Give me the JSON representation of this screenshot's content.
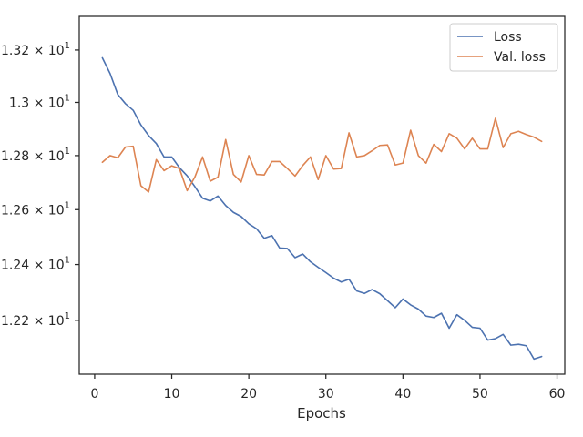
{
  "chart_data": {
    "type": "line",
    "title": "",
    "xlabel": "Epochs",
    "ylabel": "",
    "xlim": [
      -2,
      61
    ],
    "ylim": [
      12.01,
      13.33
    ],
    "y_scale": "log",
    "grid": false,
    "legend_position": "top-right",
    "x_ticks": [
      0,
      10,
      20,
      30,
      40,
      50,
      60
    ],
    "x_tick_labels": [
      "0",
      "10",
      "20",
      "30",
      "40",
      "50",
      "60"
    ],
    "y_ticks": [
      12.2,
      12.4,
      12.6,
      12.8,
      13.0,
      13.2
    ],
    "y_tick_labels": [
      {
        "mantissa": "1.22",
        "exp": "1"
      },
      {
        "mantissa": "1.24",
        "exp": "1"
      },
      {
        "mantissa": "1.26",
        "exp": "1"
      },
      {
        "mantissa": "1.28",
        "exp": "1"
      },
      {
        "mantissa": "1.3",
        "exp": "1"
      },
      {
        "mantissa": "1.32",
        "exp": "1"
      }
    ],
    "x": [
      1,
      2,
      3,
      4,
      5,
      6,
      7,
      8,
      9,
      10,
      11,
      12,
      13,
      14,
      15,
      16,
      17,
      18,
      19,
      20,
      21,
      22,
      23,
      24,
      25,
      26,
      27,
      28,
      29,
      30,
      31,
      32,
      33,
      34,
      35,
      36,
      37,
      38,
      39,
      40,
      41,
      42,
      43,
      44,
      45,
      46,
      47,
      48,
      49,
      50,
      51,
      52,
      53,
      54,
      55,
      56,
      57,
      58
    ],
    "series": [
      {
        "name": "Loss",
        "color": "#4c72b0",
        "values": [
          13.17,
          13.11,
          13.03,
          12.995,
          12.97,
          12.915,
          12.875,
          12.845,
          12.795,
          12.795,
          12.755,
          12.725,
          12.685,
          12.642,
          12.632,
          12.65,
          12.615,
          12.59,
          12.575,
          12.548,
          12.53,
          12.495,
          12.505,
          12.46,
          12.458,
          12.425,
          12.438,
          12.41,
          12.39,
          12.371,
          12.351,
          12.337,
          12.347,
          12.305,
          12.296,
          12.31,
          12.295,
          12.27,
          12.245,
          12.276,
          12.255,
          12.24,
          12.215,
          12.21,
          12.225,
          12.172,
          12.22,
          12.2,
          12.175,
          12.172,
          12.13,
          12.135,
          12.15,
          12.112,
          12.115,
          12.11,
          12.063,
          12.072
        ]
      },
      {
        "name": "Val. loss",
        "color": "#dd8452",
        "values": [
          12.775,
          12.8,
          12.792,
          12.832,
          12.835,
          12.688,
          12.665,
          12.785,
          12.744,
          12.762,
          12.752,
          12.67,
          12.72,
          12.795,
          12.705,
          12.72,
          12.86,
          12.73,
          12.702,
          12.8,
          12.73,
          12.728,
          12.778,
          12.778,
          12.752,
          12.724,
          12.763,
          12.795,
          12.711,
          12.8,
          12.75,
          12.752,
          12.885,
          12.795,
          12.8,
          12.818,
          12.838,
          12.84,
          12.765,
          12.772,
          12.895,
          12.8,
          12.772,
          12.842,
          12.815,
          12.882,
          12.865,
          12.825,
          12.865,
          12.825,
          12.825,
          12.94,
          12.83,
          12.882,
          12.891,
          12.879,
          12.869,
          12.853
        ]
      }
    ]
  }
}
